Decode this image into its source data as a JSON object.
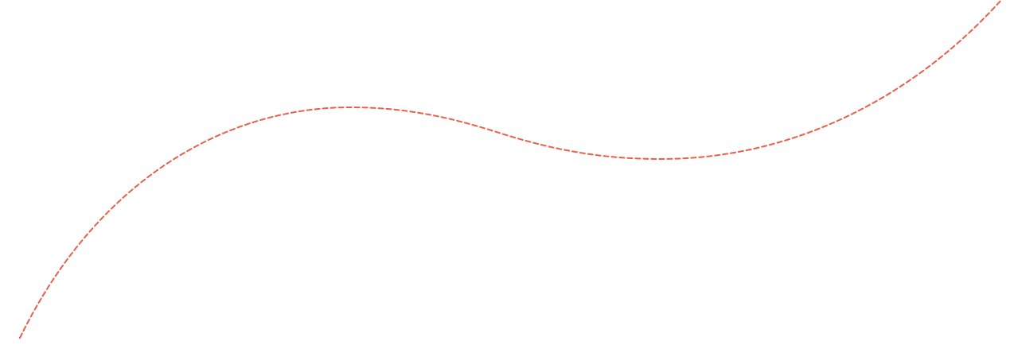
{
  "decoration": {
    "stroke_color": "#E8604A",
    "line_style": "dashed"
  }
}
